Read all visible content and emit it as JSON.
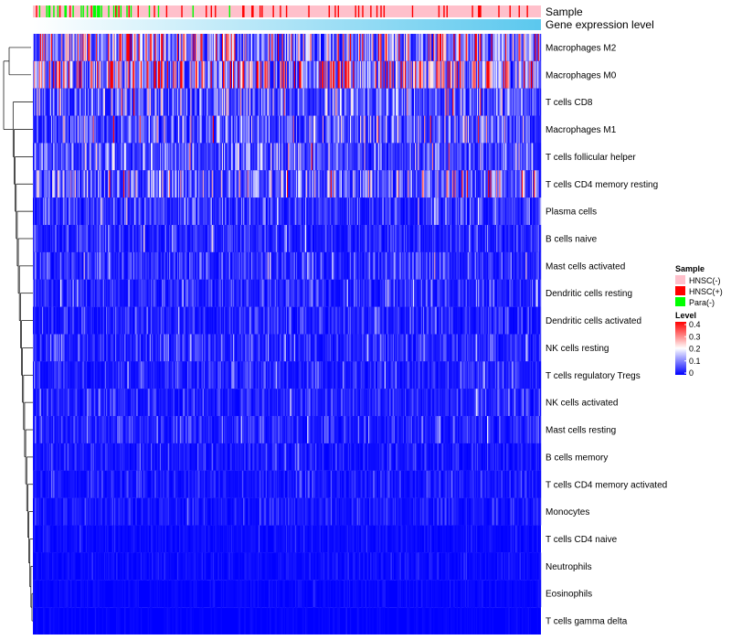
{
  "chart_data": {
    "type": "heatmap",
    "title": "",
    "annotations": [
      {
        "name": "Sample"
      },
      {
        "name": "Gene expression level"
      }
    ],
    "rows": [
      {
        "label": "Macrophages M2",
        "mean": 0.16
      },
      {
        "label": "Macrophages M0",
        "mean": 0.2
      },
      {
        "label": "T cells CD8",
        "mean": 0.08
      },
      {
        "label": "Macrophages M1",
        "mean": 0.07
      },
      {
        "label": "T cells follicular helper",
        "mean": 0.065
      },
      {
        "label": "T cells CD4 memory resting",
        "mean": 0.09
      },
      {
        "label": "Plasma cells",
        "mean": 0.045
      },
      {
        "label": "B cells naive",
        "mean": 0.035
      },
      {
        "label": "Mast cells activated",
        "mean": 0.04
      },
      {
        "label": "Dendritic cells resting",
        "mean": 0.035
      },
      {
        "label": "Dendritic cells activated",
        "mean": 0.03
      },
      {
        "label": "NK cells resting",
        "mean": 0.035
      },
      {
        "label": "T cells regulatory  Tregs",
        "mean": 0.035
      },
      {
        "label": "NK cells activated",
        "mean": 0.03
      },
      {
        "label": "Mast cells resting",
        "mean": 0.03
      },
      {
        "label": "B cells memory",
        "mean": 0.02
      },
      {
        "label": "T cells CD4 memory activated",
        "mean": 0.02
      },
      {
        "label": "Monocytes",
        "mean": 0.02
      },
      {
        "label": "T cells CD4 naive",
        "mean": 0.01
      },
      {
        "label": "Neutrophils",
        "mean": 0.01
      },
      {
        "label": "Eosinophils",
        "mean": 0.006
      },
      {
        "label": "T cells gamma delta",
        "mean": 0.004
      }
    ],
    "n_columns": 500,
    "sample_groups": [
      {
        "name": "HNSC(-)",
        "color": "#FFC0CB"
      },
      {
        "name": "HNSC(+)",
        "color": "#FF0000"
      },
      {
        "name": "Para(-)",
        "color": "#00FF00"
      }
    ],
    "gene_expression_gradient": [
      "#FFFFFF",
      "#5BC8EE"
    ],
    "color_scale": {
      "title": "Level",
      "stops": [
        {
          "value": 0,
          "color": "#0000FF"
        },
        {
          "value": 0.2,
          "color": "#FFFFFF"
        },
        {
          "value": 0.4,
          "color": "#FF0000"
        }
      ],
      "ticks": [
        0.4,
        0.3,
        0.2,
        0.1,
        0
      ]
    },
    "legend_titles": {
      "sample": "Sample",
      "level": "Level"
    },
    "dendrogram": {
      "merge_order": [
        [
          20,
          21
        ],
        [
          18,
          19
        ],
        [
          15,
          16
        ],
        [
          13,
          14
        ],
        [
          11,
          12
        ],
        [
          9,
          10
        ],
        [
          6,
          7
        ],
        [
          3,
          4
        ],
        [
          0,
          1
        ]
      ]
    }
  }
}
